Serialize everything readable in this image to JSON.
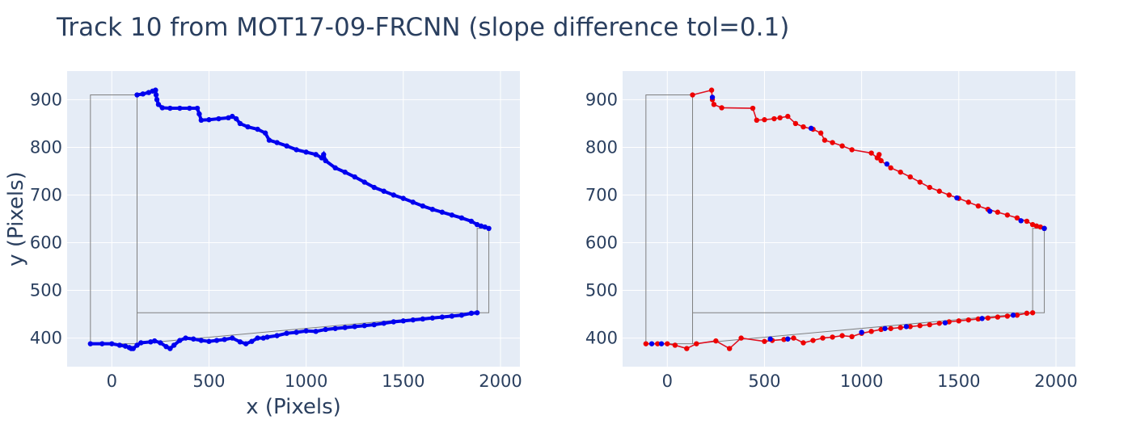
{
  "title": "Track 10 from MOT17-09-FRCNN (slope difference tol=0.1)",
  "colors": {
    "plot_bg": "#e5ecf6",
    "grid": "#ffffff",
    "box": "#808080",
    "points_blue": "#0000ee",
    "points_red": "#ee0000",
    "line_red": "#e01020"
  },
  "chart_data": [
    {
      "type": "scatter",
      "xlabel": "x (Pixels)",
      "ylabel": "y (Pixels)",
      "xlim": [
        -230,
        2100
      ],
      "ylim": [
        340,
        960
      ],
      "xticks": [
        0,
        500,
        1000,
        1500,
        2000
      ],
      "yticks": [
        400,
        500,
        600,
        700,
        800,
        900
      ],
      "grid": true,
      "bounding_box": {
        "x": [
          -110,
          -110,
          130,
          130,
          1880,
          1880,
          1940,
          1940,
          130,
          130,
          -110
        ],
        "y": [
          388,
          910,
          910,
          388,
          453,
          630,
          630,
          453,
          453,
          388,
          388
        ]
      },
      "series": [
        {
          "color": "blue",
          "mode": "markers+lines",
          "x": [
            -110,
            -50,
            0,
            40,
            70,
            90,
            100,
            110,
            130,
            150,
            200,
            220,
            250,
            280,
            300,
            320,
            350,
            380,
            420,
            460,
            500,
            540,
            580,
            620,
            660,
            690,
            720,
            750,
            780,
            800,
            850,
            900,
            950,
            1000,
            1050,
            1100,
            1150,
            1200,
            1250,
            1300,
            1350,
            1400,
            1450,
            1500,
            1550,
            1600,
            1650,
            1700,
            1750,
            1800,
            1850,
            1880
          ],
          "y": [
            388,
            388,
            388,
            385,
            383,
            380,
            378,
            378,
            385,
            390,
            392,
            394,
            390,
            382,
            378,
            385,
            395,
            400,
            398,
            395,
            393,
            395,
            397,
            400,
            392,
            388,
            393,
            400,
            400,
            402,
            405,
            410,
            412,
            415,
            414,
            418,
            420,
            422,
            424,
            426,
            428,
            431,
            434,
            436,
            438,
            440,
            442,
            444,
            446,
            448,
            452,
            453
          ]
        },
        {
          "color": "blue",
          "mode": "markers+lines",
          "x": [
            130,
            160,
            190,
            210,
            225,
            228,
            232,
            240,
            260,
            300,
            350,
            400,
            440,
            450,
            460,
            500,
            550,
            600,
            620,
            640,
            660,
            700,
            750,
            790,
            810,
            850,
            900,
            950,
            1000,
            1050,
            1080,
            1090,
            1100,
            1150,
            1200,
            1250,
            1300,
            1350,
            1400,
            1450,
            1500,
            1550,
            1600,
            1650,
            1700,
            1750,
            1800,
            1850,
            1880,
            1900,
            1920,
            1940
          ],
          "y": [
            910,
            912,
            915,
            918,
            920,
            910,
            900,
            890,
            883,
            882,
            882,
            882,
            882,
            870,
            857,
            858,
            860,
            862,
            865,
            860,
            850,
            843,
            838,
            830,
            815,
            810,
            803,
            795,
            790,
            785,
            778,
            785,
            772,
            757,
            748,
            738,
            727,
            716,
            708,
            700,
            693,
            685,
            677,
            670,
            664,
            658,
            652,
            645,
            638,
            635,
            633,
            630
          ]
        }
      ]
    },
    {
      "type": "scatter",
      "xlabel": "",
      "ylabel": "",
      "xlim": [
        -230,
        2100
      ],
      "ylim": [
        340,
        960
      ],
      "xticks": [
        0,
        500,
        1000,
        1500,
        2000
      ],
      "yticks": [
        400,
        500,
        600,
        700,
        800,
        900
      ],
      "grid": true,
      "bounding_box": {
        "x": [
          -110,
          -110,
          130,
          130,
          1880,
          1880,
          1940,
          1940,
          130,
          130,
          -110
        ],
        "y": [
          388,
          910,
          910,
          388,
          453,
          630,
          630,
          453,
          453,
          388,
          388
        ]
      },
      "series": [
        {
          "color": "red",
          "mode": "markers+lines",
          "x": [
            -110,
            -50,
            0,
            40,
            100,
            150,
            250,
            320,
            380,
            500,
            540,
            600,
            650,
            700,
            750,
            800,
            850,
            900,
            950,
            1000,
            1050,
            1100,
            1150,
            1200,
            1250,
            1300,
            1350,
            1400,
            1450,
            1500,
            1550,
            1600,
            1650,
            1700,
            1750,
            1800,
            1850,
            1880
          ],
          "y": [
            388,
            388,
            388,
            385,
            378,
            388,
            394,
            378,
            400,
            393,
            395,
            397,
            400,
            390,
            395,
            400,
            402,
            405,
            403,
            410,
            414,
            418,
            420,
            422,
            424,
            426,
            428,
            431,
            434,
            436,
            438,
            440,
            442,
            444,
            446,
            448,
            452,
            453
          ]
        },
        {
          "color": "red",
          "mode": "markers+lines",
          "x": [
            130,
            228,
            232,
            240,
            280,
            440,
            460,
            500,
            550,
            580,
            620,
            660,
            700,
            750,
            790,
            810,
            850,
            900,
            950,
            1050,
            1080,
            1090,
            1100,
            1150,
            1200,
            1250,
            1300,
            1350,
            1400,
            1450,
            1500,
            1550,
            1600,
            1650,
            1700,
            1750,
            1800,
            1850,
            1880,
            1900,
            1920,
            1940
          ],
          "y": [
            910,
            920,
            900,
            890,
            883,
            882,
            857,
            858,
            860,
            862,
            865,
            850,
            843,
            838,
            830,
            815,
            810,
            803,
            795,
            788,
            778,
            785,
            772,
            757,
            748,
            738,
            727,
            716,
            708,
            700,
            693,
            685,
            677,
            670,
            664,
            658,
            652,
            645,
            638,
            635,
            633,
            630
          ]
        },
        {
          "color": "blue",
          "mode": "markers",
          "x": [
            -80,
            -30,
            530,
            620,
            1000,
            1120,
            1230,
            1430,
            1620,
            1780,
            1940,
            232,
            740,
            1130,
            1490,
            1660,
            1820
          ],
          "y": [
            388,
            388,
            398,
            398,
            412,
            420,
            424,
            432,
            441,
            448,
            630,
            905,
            840,
            765,
            694,
            666,
            646
          ]
        }
      ]
    }
  ]
}
